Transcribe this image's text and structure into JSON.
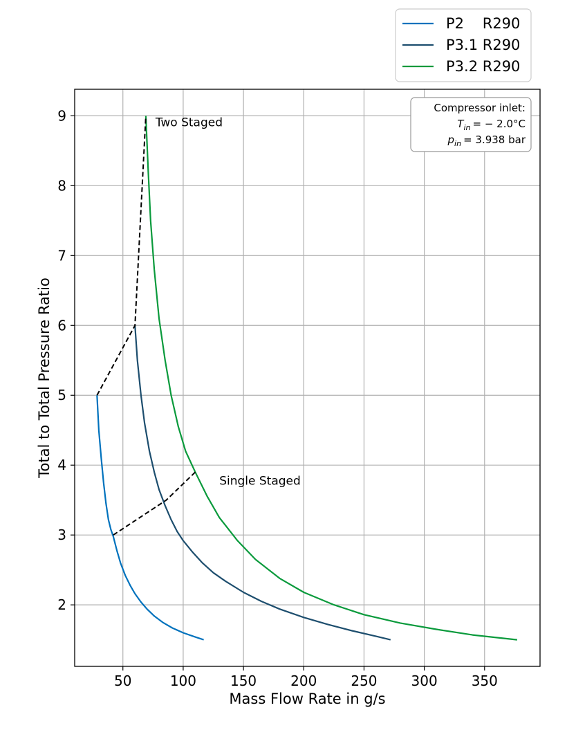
{
  "chart_data": {
    "type": "line",
    "title": "",
    "xlabel": "Mass Flow Rate in g/s",
    "ylabel": "Total to Total Pressure Ratio",
    "xlim": [
      10,
      396
    ],
    "ylim": [
      1.12,
      9.38
    ],
    "xticks": [
      50,
      100,
      150,
      200,
      250,
      300,
      350
    ],
    "yticks": [
      2,
      3,
      4,
      5,
      6,
      7,
      8,
      9
    ],
    "grid": true,
    "legend_position": "top-right outside",
    "series": [
      {
        "name": "P2    R290",
        "color": "#0072bd",
        "x": [
          28.5,
          30,
          32,
          34,
          36,
          38,
          40,
          42,
          45,
          48,
          52,
          56,
          60,
          65,
          70,
          76,
          83,
          91,
          100,
          110,
          117
        ],
        "y": [
          5.0,
          4.5,
          4.1,
          3.75,
          3.45,
          3.22,
          3.08,
          2.98,
          2.78,
          2.6,
          2.42,
          2.28,
          2.16,
          2.04,
          1.94,
          1.84,
          1.75,
          1.67,
          1.6,
          1.54,
          1.5
        ]
      },
      {
        "name": "P3.1 R290",
        "color": "#1d4e6e",
        "x": [
          60,
          62,
          65,
          68,
          72,
          76,
          80,
          85,
          90,
          95,
          100,
          108,
          116,
          125,
          135,
          150,
          165,
          180,
          200,
          220,
          240,
          260,
          272
        ],
        "y": [
          6.0,
          5.5,
          5.0,
          4.6,
          4.2,
          3.9,
          3.65,
          3.42,
          3.22,
          3.05,
          2.92,
          2.75,
          2.6,
          2.46,
          2.34,
          2.18,
          2.05,
          1.94,
          1.82,
          1.72,
          1.63,
          1.55,
          1.5
        ]
      },
      {
        "name": "P3.2 R290",
        "color": "#0a9a3c",
        "x": [
          69,
          71,
          73,
          76,
          80,
          85,
          90,
          96,
          102,
          110,
          120,
          130,
          145,
          160,
          180,
          200,
          225,
          250,
          280,
          310,
          340,
          377
        ],
        "y": [
          9.0,
          8.2,
          7.5,
          6.8,
          6.1,
          5.5,
          5.0,
          4.55,
          4.2,
          3.9,
          3.55,
          3.25,
          2.92,
          2.65,
          2.38,
          2.18,
          2.0,
          1.86,
          1.74,
          1.65,
          1.57,
          1.5
        ]
      },
      {
        "name": "Two Staged",
        "color": "#000000",
        "dashed": true,
        "x": [
          28.5,
          60,
          69
        ],
        "y": [
          5.0,
          6.0,
          9.0
        ]
      },
      {
        "name": "Single Staged",
        "color": "#000000",
        "dashed": true,
        "x": [
          42,
          86,
          110
        ],
        "y": [
          3.0,
          3.5,
          3.9
        ]
      }
    ],
    "legend": {
      "entries": [
        {
          "label": "P2    R290",
          "color": "#0072bd"
        },
        {
          "label": "P3.1 R290",
          "color": "#1d4e6e"
        },
        {
          "label": "P3.2 R290",
          "color": "#0a9a3c"
        }
      ]
    },
    "annotations": [
      {
        "text": "Two Staged",
        "x": 77,
        "y": 8.85
      },
      {
        "text": "Single Staged",
        "x": 130,
        "y": 3.72
      }
    ],
    "info_box": {
      "line1": "Compressor inlet:",
      "t_symbol": "T",
      "t_sub": "in",
      "t_value": "= − 2.0°C",
      "p_symbol": "p",
      "p_sub": "in",
      "p_value": "= 3.938 bar"
    }
  }
}
